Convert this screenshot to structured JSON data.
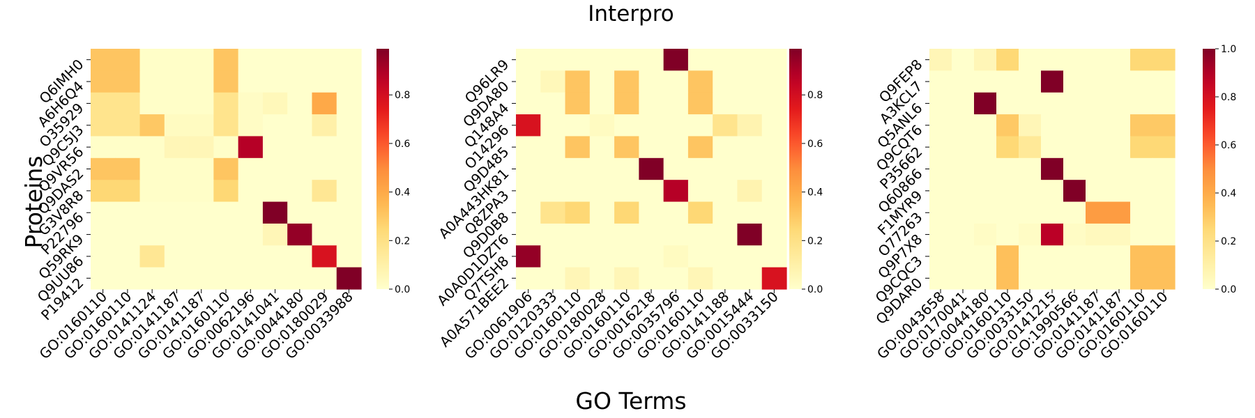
{
  "figure": {
    "title": "Interpro",
    "ylabel": "Proteins",
    "xlabel": "GO Terms"
  },
  "colormap": {
    "name": "YlOrRd",
    "stops": [
      "#ffffcc",
      "#ffeda0",
      "#fed976",
      "#feb24c",
      "#fd8d3c",
      "#fc4e2a",
      "#e31a1c",
      "#bd0026",
      "#800026"
    ]
  },
  "chart_data": [
    {
      "type": "heatmap",
      "title": "",
      "ylabel": "Proteins",
      "xlabel": "",
      "rows": [
        "Q6IMH0",
        "A6H6Q4",
        "O35929",
        "Q9C5J3",
        "Q9VR56",
        "Q9DAS2",
        "G3V8R8",
        "P22796",
        "Q59RK9",
        "Q9UU86",
        "P19412"
      ],
      "columns": [
        "GO:0160110",
        "GO:0160110",
        "GO:0141124",
        "GO:0141187",
        "GO:0141187",
        "GO:0160110",
        "GO:0062196",
        "GO:0141041",
        "GO:0044180",
        "GO:0180029",
        "GO:0033988"
      ],
      "values": [
        [
          0.31,
          0.31,
          0.01,
          0.01,
          0.01,
          0.31,
          0.0,
          0.0,
          0.0,
          0.0,
          0.0
        ],
        [
          0.31,
          0.31,
          0.01,
          0.01,
          0.01,
          0.31,
          0.0,
          0.0,
          0.0,
          0.0,
          0.0
        ],
        [
          0.18,
          0.18,
          0.01,
          0.01,
          0.01,
          0.18,
          0.02,
          0.05,
          0.0,
          0.4,
          0.0
        ],
        [
          0.18,
          0.18,
          0.3,
          0.03,
          0.03,
          0.18,
          0.02,
          0.0,
          0.0,
          0.1,
          0.0
        ],
        [
          0.01,
          0.01,
          0.01,
          0.06,
          0.06,
          0.01,
          0.88,
          0.0,
          0.0,
          0.0,
          0.0
        ],
        [
          0.31,
          0.31,
          0.01,
          0.01,
          0.01,
          0.31,
          0.0,
          0.0,
          0.0,
          0.0,
          0.0
        ],
        [
          0.25,
          0.25,
          0.01,
          0.01,
          0.01,
          0.25,
          0.0,
          0.0,
          0.0,
          0.16,
          0.0
        ],
        [
          0.0,
          0.0,
          0.0,
          0.0,
          0.0,
          0.0,
          0.0,
          0.99,
          0.0,
          0.0,
          0.0
        ],
        [
          0.0,
          0.0,
          0.0,
          0.0,
          0.0,
          0.0,
          0.0,
          0.06,
          0.95,
          0.0,
          0.0
        ],
        [
          0.0,
          0.0,
          0.16,
          0.0,
          0.0,
          0.0,
          0.0,
          0.0,
          0.0,
          0.78,
          0.0
        ],
        [
          0.0,
          0.0,
          0.0,
          0.0,
          0.0,
          0.0,
          0.0,
          0.0,
          0.0,
          0.0,
          0.99
        ]
      ],
      "colorbar": {
        "range": [
          0,
          0.99
        ],
        "ticks": [
          "0.0",
          "0.2",
          "0.4",
          "0.6",
          "0.8"
        ]
      }
    },
    {
      "type": "heatmap",
      "title": "",
      "ylabel": "",
      "xlabel": "",
      "rows": [
        "Q96LR9",
        "Q9DA80",
        "Q148A4",
        "O14296",
        "Q9D485",
        "A0A443HK81",
        "Q8ZPA3",
        "Q9D0B8",
        "A0A0D1DZT6",
        "Q7TSH8",
        "A0A571BEE2"
      ],
      "columns": [
        "GO:0061906",
        "GO:0120333",
        "GO:0160110",
        "GO:0180028",
        "GO:0160110",
        "GO:0016218",
        "GO:0035796",
        "GO:0160110",
        "GO:0141188",
        "GO:0015444",
        "GO:0033150"
      ],
      "values": [
        [
          0.0,
          0.0,
          0.0,
          0.0,
          0.0,
          0.0,
          0.99,
          0.0,
          0.0,
          0.0,
          0.0
        ],
        [
          0.0,
          0.05,
          0.31,
          0.0,
          0.31,
          0.0,
          0.0,
          0.31,
          0.0,
          0.0,
          0.0
        ],
        [
          0.0,
          0.0,
          0.31,
          0.0,
          0.31,
          0.0,
          0.0,
          0.31,
          0.0,
          0.0,
          0.0
        ],
        [
          0.78,
          0.0,
          0.0,
          0.03,
          0.0,
          0.0,
          0.0,
          0.0,
          0.18,
          0.08,
          0.0
        ],
        [
          0.0,
          0.0,
          0.31,
          0.0,
          0.31,
          0.0,
          0.0,
          0.31,
          0.0,
          0.0,
          0.0
        ],
        [
          0.0,
          0.0,
          0.0,
          0.0,
          0.0,
          0.99,
          0.0,
          0.0,
          0.0,
          0.0,
          0.0
        ],
        [
          0.0,
          0.0,
          0.0,
          0.0,
          0.0,
          0.0,
          0.88,
          0.0,
          0.0,
          0.08,
          0.0
        ],
        [
          0.0,
          0.18,
          0.25,
          0.0,
          0.25,
          0.0,
          0.0,
          0.25,
          0.0,
          0.0,
          0.0
        ],
        [
          0.0,
          0.0,
          0.0,
          0.0,
          0.0,
          0.0,
          0.0,
          0.0,
          0.0,
          0.99,
          0.0
        ],
        [
          0.95,
          0.0,
          0.0,
          0.0,
          0.0,
          0.0,
          0.03,
          0.0,
          0.0,
          0.0,
          0.0
        ],
        [
          0.0,
          0.0,
          0.06,
          0.0,
          0.06,
          0.0,
          0.0,
          0.06,
          0.0,
          0.0,
          0.78
        ]
      ],
      "colorbar": {
        "range": [
          0,
          0.99
        ],
        "ticks": [
          "0.0",
          "0.2",
          "0.4",
          "0.6",
          "0.8"
        ]
      }
    },
    {
      "type": "heatmap",
      "title": "",
      "ylabel": "",
      "xlabel": "",
      "rows": [
        "Q9FEP8",
        "A3KCL7",
        "Q5ANL6",
        "Q9CQT6",
        "P35662",
        "Q60866",
        "F1MYR9",
        "O77263",
        "Q9P7X8",
        "Q9CQC3",
        "Q9DAR0"
      ],
      "columns": [
        "GO:0043658",
        "GO:0170041",
        "GO:0044180",
        "GO:0160110",
        "GO:0033150",
        "GO:0141215",
        "GO:1990566",
        "GO:0141187",
        "GO:0141187",
        "GO:0160110",
        "GO:0160110"
      ],
      "values": [
        [
          0.06,
          0.0,
          0.06,
          0.25,
          0.0,
          0.0,
          0.0,
          0.0,
          0.0,
          0.25,
          0.25
        ],
        [
          0.0,
          0.0,
          0.0,
          0.0,
          0.0,
          1.0,
          0.0,
          0.0,
          0.0,
          0.0,
          0.0
        ],
        [
          0.0,
          0.0,
          1.0,
          0.0,
          0.0,
          0.0,
          0.0,
          0.0,
          0.0,
          0.0,
          0.0
        ],
        [
          0.0,
          0.0,
          0.0,
          0.3,
          0.06,
          0.0,
          0.0,
          0.0,
          0.0,
          0.3,
          0.3
        ],
        [
          0.0,
          0.0,
          0.0,
          0.25,
          0.15,
          0.0,
          0.0,
          0.0,
          0.0,
          0.25,
          0.25
        ],
        [
          0.0,
          0.0,
          0.0,
          0.0,
          0.0,
          1.0,
          0.0,
          0.0,
          0.0,
          0.0,
          0.0
        ],
        [
          0.0,
          0.0,
          0.0,
          0.0,
          0.0,
          0.0,
          1.0,
          0.0,
          0.0,
          0.0,
          0.0
        ],
        [
          0.0,
          0.0,
          0.0,
          0.0,
          0.0,
          0.0,
          0.0,
          0.45,
          0.45,
          0.0,
          0.0
        ],
        [
          0.0,
          0.0,
          0.02,
          0.0,
          0.02,
          0.88,
          0.02,
          0.04,
          0.04,
          0.0,
          0.0
        ],
        [
          0.0,
          0.0,
          0.0,
          0.33,
          0.0,
          0.0,
          0.0,
          0.0,
          0.0,
          0.33,
          0.33
        ],
        [
          0.0,
          0.0,
          0.0,
          0.33,
          0.0,
          0.0,
          0.0,
          0.0,
          0.0,
          0.33,
          0.33
        ]
      ],
      "colorbar": {
        "range": [
          0,
          1.0
        ],
        "ticks": [
          "0.0",
          "0.2",
          "0.4",
          "0.6",
          "0.8",
          "1.0"
        ]
      }
    }
  ]
}
